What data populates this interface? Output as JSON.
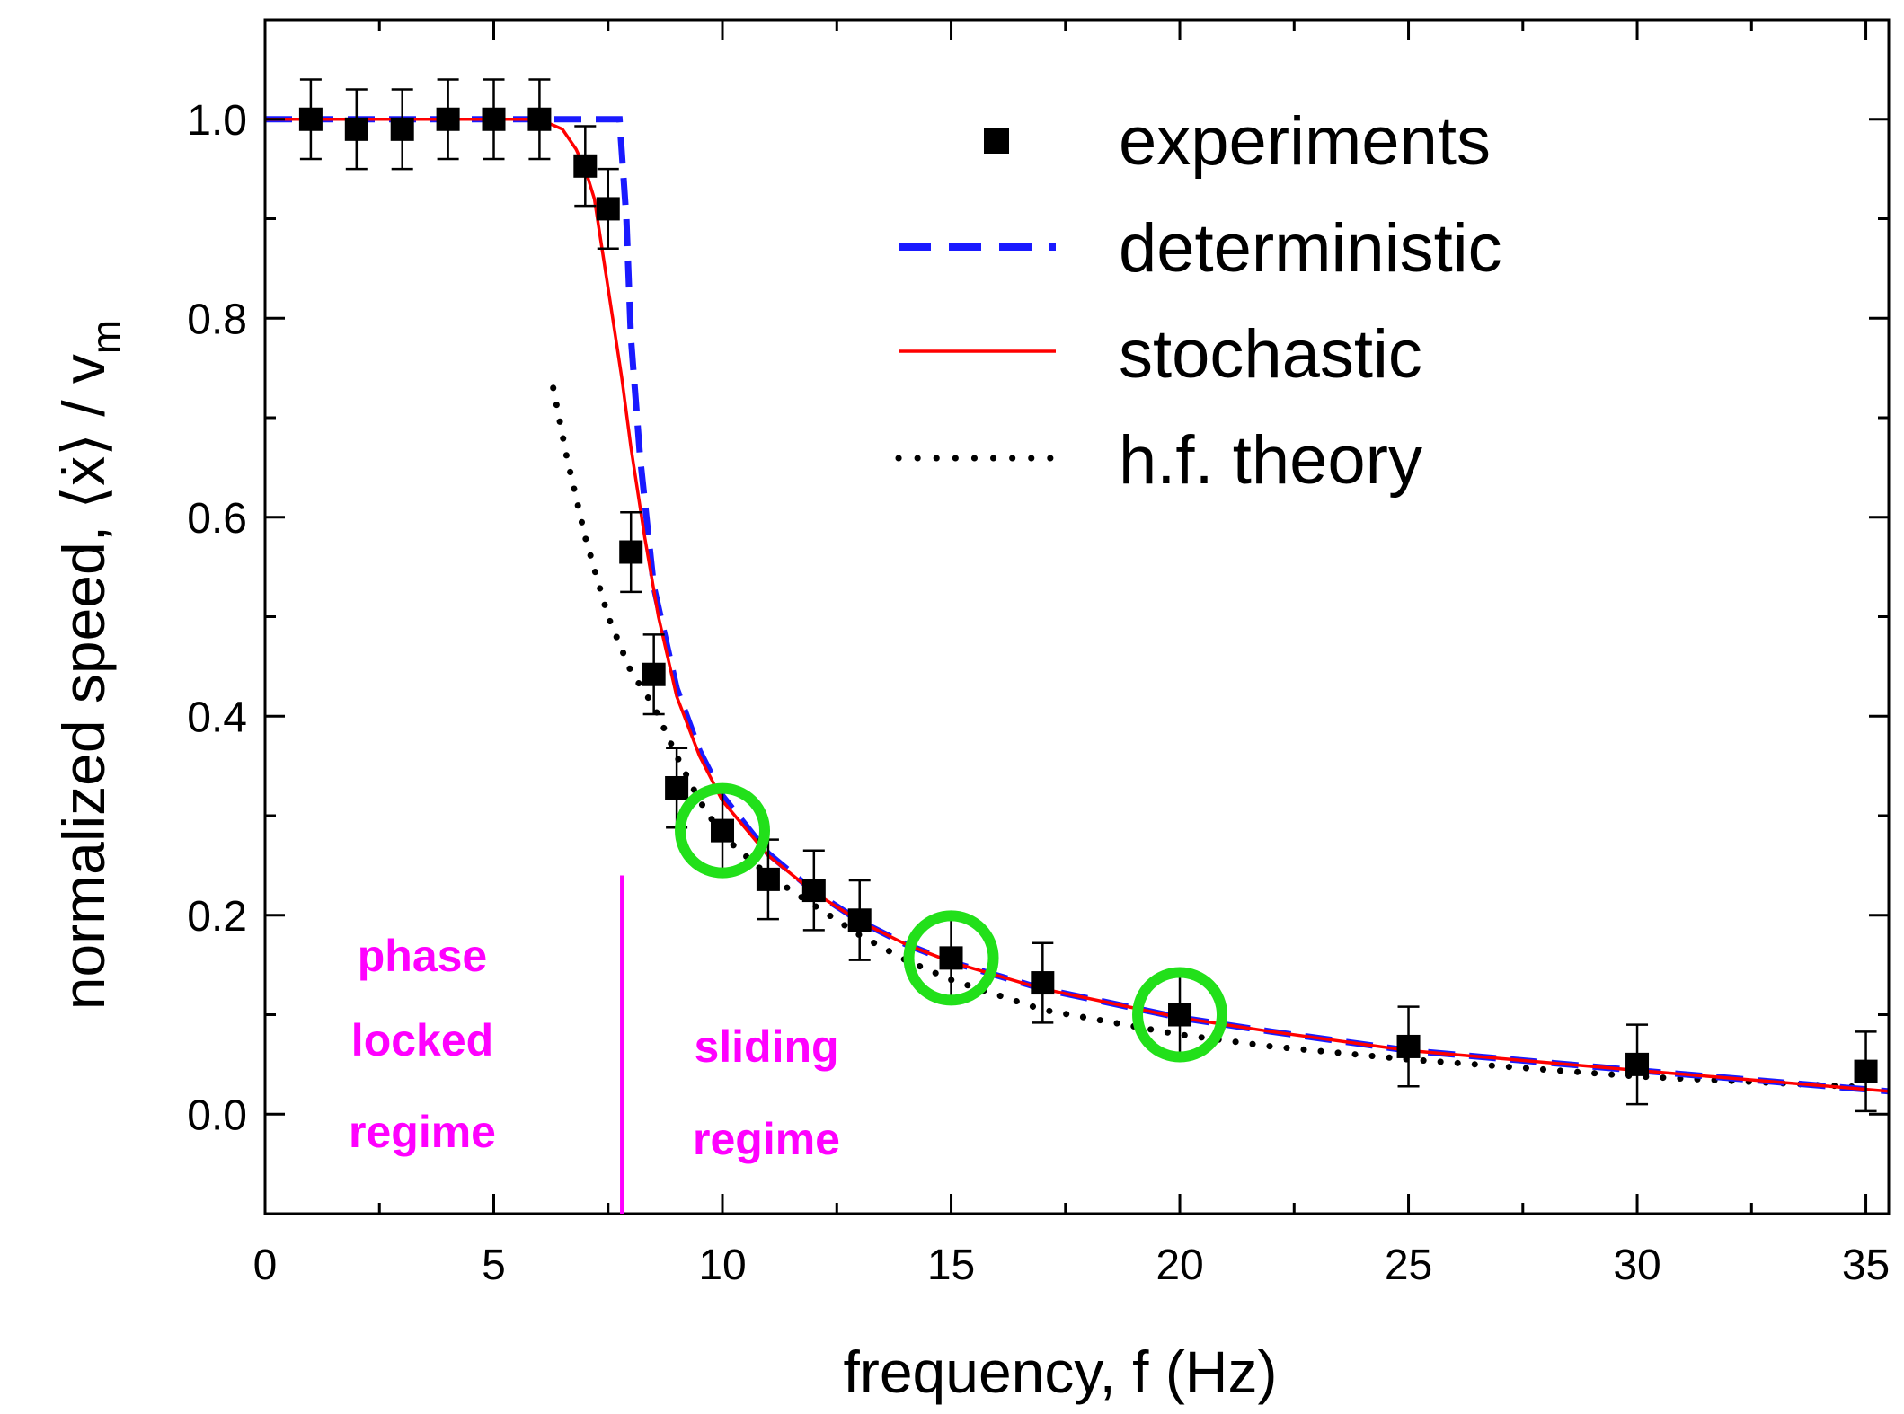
{
  "chart_data": {
    "type": "scatter",
    "title": "",
    "xlabel": "frequency, f (Hz)",
    "ylabel": "normalized speed, ⟨ẋ⟩ / v",
    "ylabel_subscript": "m",
    "xlim": [
      0,
      35.5
    ],
    "ylim": [
      -0.1,
      1.1
    ],
    "xticks": [
      0,
      5,
      10,
      15,
      20,
      25,
      30,
      35
    ],
    "yticks": [
      0.0,
      0.2,
      0.4,
      0.6,
      0.8,
      1.0
    ],
    "xtick_labels": [
      "0",
      "5",
      "10",
      "15",
      "20",
      "25",
      "30",
      "35"
    ],
    "ytick_labels": [
      "0.0",
      "0.2",
      "0.4",
      "0.6",
      "0.8",
      "1.0"
    ],
    "legend_position": "top-right",
    "colors": {
      "experiments": "#000000",
      "deterministic": "#1a1aff",
      "stochastic": "#ff0000",
      "hf_theory": "#000000",
      "highlight": "#22e01a",
      "annotation": "#ff00ff"
    },
    "series": [
      {
        "name": "experiments",
        "style": "square-markers-with-error-bars",
        "x": [
          1,
          2,
          3,
          4,
          5,
          6,
          7,
          7.5,
          8,
          8.5,
          9,
          10,
          11,
          12,
          13,
          15,
          17,
          20,
          25,
          30,
          35
        ],
        "y": [
          1.0,
          0.99,
          0.99,
          1.0,
          1.0,
          1.0,
          0.953,
          0.91,
          0.565,
          0.442,
          0.328,
          0.285,
          0.236,
          0.225,
          0.195,
          0.157,
          0.132,
          0.1,
          0.068,
          0.05,
          0.043
        ],
        "error": [
          0.04,
          0.04,
          0.04,
          0.04,
          0.04,
          0.04,
          0.04,
          0.04,
          0.04,
          0.04,
          0.04,
          0.04,
          0.04,
          0.04,
          0.04,
          0.04,
          0.04,
          0.04,
          0.04,
          0.04,
          0.04
        ]
      },
      {
        "name": "deterministic",
        "style": "dashed",
        "x": [
          0,
          6,
          7,
          7.5,
          7.75,
          7.9,
          8.0,
          8.2,
          8.5,
          9,
          9.5,
          10,
          11,
          12,
          13,
          14,
          15,
          17,
          20,
          22,
          25,
          30,
          35,
          35.5
        ],
        "y": [
          1.0,
          1.0,
          1.0,
          1.0,
          1.0,
          0.9,
          0.78,
          0.66,
          0.53,
          0.428,
          0.365,
          0.32,
          0.262,
          0.224,
          0.194,
          0.171,
          0.153,
          0.126,
          0.097,
          0.083,
          0.064,
          0.044,
          0.025,
          0.023
        ]
      },
      {
        "name": "stochastic",
        "style": "solid",
        "x": [
          0,
          6,
          6.5,
          6.8,
          7,
          7.2,
          7.4,
          7.6,
          7.8,
          8,
          8.3,
          8.6,
          9,
          9.5,
          10,
          11,
          12,
          13,
          14,
          15,
          17,
          20,
          22,
          25,
          30,
          35,
          35.5
        ],
        "y": [
          1.0,
          1.0,
          0.99,
          0.97,
          0.95,
          0.92,
          0.86,
          0.8,
          0.74,
          0.67,
          0.58,
          0.5,
          0.42,
          0.36,
          0.315,
          0.26,
          0.223,
          0.194,
          0.171,
          0.153,
          0.126,
          0.097,
          0.083,
          0.064,
          0.044,
          0.025,
          0.023
        ]
      },
      {
        "name": "h.f. theory",
        "style": "dotted",
        "x": [
          6.3,
          6.6,
          7,
          7.5,
          8,
          8.5,
          9,
          9.5,
          10,
          11,
          12,
          13,
          14,
          15,
          17,
          20,
          22,
          25,
          30,
          35
        ],
        "y": [
          0.73,
          0.66,
          0.58,
          0.5,
          0.445,
          0.41,
          0.36,
          0.315,
          0.28,
          0.24,
          0.21,
          0.18,
          0.155,
          0.135,
          0.105,
          0.08,
          0.068,
          0.055,
          0.038,
          0.027
        ]
      }
    ],
    "highlighted_points": [
      {
        "x": 10,
        "y": 0.285
      },
      {
        "x": 15,
        "y": 0.157
      },
      {
        "x": 20,
        "y": 0.1
      }
    ],
    "regime_boundary_x": 7.8,
    "regime_boundary_ymax": 0.24,
    "legend": {
      "experiments": "experiments",
      "deterministic": "deterministic",
      "stochastic": "stochastic",
      "hf_theory": "h.f. theory"
    },
    "annotations": {
      "left_regime": [
        "phase",
        "locked",
        "regime"
      ],
      "right_regime": [
        "sliding",
        "regime"
      ]
    }
  }
}
